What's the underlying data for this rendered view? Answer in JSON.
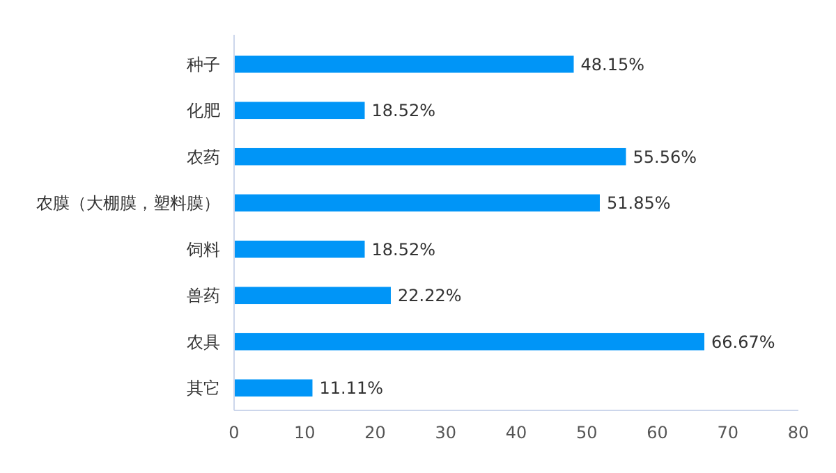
{
  "chart_data": {
    "type": "bar",
    "orientation": "horizontal",
    "categories": [
      "种子",
      "化肥",
      "农药",
      "农膜（大棚膜，塑料膜）",
      "饲料",
      "兽药",
      "农具",
      "其它"
    ],
    "values": [
      48.15,
      18.52,
      55.56,
      51.85,
      18.52,
      22.22,
      66.67,
      11.11
    ],
    "value_labels": [
      "48.15%",
      "18.52%",
      "55.56%",
      "51.85%",
      "18.52%",
      "22.22%",
      "66.67%",
      "11.11%"
    ],
    "color": "#0095f7",
    "xlim": [
      0,
      80
    ],
    "xticks": [
      0,
      10,
      20,
      30,
      40,
      50,
      60,
      70,
      80
    ],
    "grid": false
  }
}
